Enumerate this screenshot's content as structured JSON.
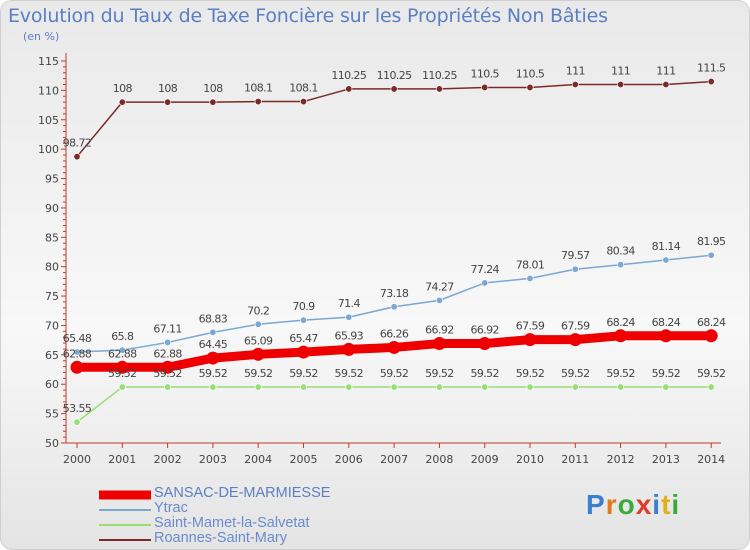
{
  "header": {
    "title": "Evolution du Taux de Taxe Foncière sur les Propriétés Non Bâties",
    "unit": "(en %)"
  },
  "logo": {
    "text": "Proxiti"
  },
  "colors": {
    "title": "#5a7fc4",
    "axis": "#c0392b",
    "text": "#444444"
  },
  "chart_data": {
    "type": "line",
    "title": "Evolution du Taux de Taxe Foncière sur les Propriétés Non Bâties",
    "ylabel": "(en %)",
    "xlabel": "",
    "ylim": [
      50,
      115
    ],
    "yticks": [
      "50",
      "55",
      "60",
      "65",
      "70",
      "75",
      "80",
      "85",
      "90",
      "95",
      "100",
      "105",
      "110",
      "115"
    ],
    "x": [
      "2000",
      "2001",
      "2002",
      "2003",
      "2004",
      "2005",
      "2006",
      "2007",
      "2008",
      "2009",
      "2010",
      "2011",
      "2012",
      "2013",
      "2014"
    ],
    "legend_position": "bottom-left",
    "series": [
      {
        "name": "SANSAC-DE-MARMIESSE",
        "color": "#ee0000",
        "values": [
          62.88,
          62.88,
          62.88,
          64.45,
          65.09,
          65.47,
          65.93,
          66.26,
          66.92,
          66.92,
          67.59,
          67.59,
          68.24,
          68.24,
          68.24
        ],
        "labels": [
          "62.88",
          "62.88",
          "62.88",
          "64.45",
          "65.09",
          "65.47",
          "65.93",
          "66.26",
          "66.92",
          "66.92",
          "67.59",
          "67.59",
          "68.24",
          "68.24",
          "68.24"
        ]
      },
      {
        "name": "Ytrac",
        "color": "#7ba7d4",
        "values": [
          65.48,
          65.8,
          67.11,
          68.83,
          70.2,
          70.9,
          71.4,
          73.18,
          74.27,
          77.24,
          78.01,
          79.57,
          80.34,
          81.14,
          81.95
        ],
        "labels": [
          "65.48",
          "65.8",
          "67.11",
          "68.83",
          "70.2",
          "70.9",
          "71.4",
          "73.18",
          "74.27",
          "77.24",
          "78.01",
          "79.57",
          "80.34",
          "81.14",
          "81.95"
        ]
      },
      {
        "name": "Saint-Mamet-la-Salvetat",
        "color": "#99dd77",
        "values": [
          53.55,
          59.52,
          59.52,
          59.52,
          59.52,
          59.52,
          59.52,
          59.52,
          59.52,
          59.52,
          59.52,
          59.52,
          59.52,
          59.52,
          59.52
        ],
        "labels": [
          "53.55",
          "59.52",
          "59.52",
          "59.52",
          "59.52",
          "59.52",
          "59.52",
          "59.52",
          "59.52",
          "59.52",
          "59.52",
          "59.52",
          "59.52",
          "59.52",
          "59.52"
        ]
      },
      {
        "name": "Roannes-Saint-Mary",
        "color": "#7a2a2a",
        "values": [
          98.72,
          108,
          108,
          108,
          108.1,
          108.1,
          110.25,
          110.25,
          110.25,
          110.5,
          110.5,
          111,
          111,
          111,
          111.5
        ],
        "labels": [
          "98.72",
          "108",
          "108",
          "108",
          "108.1",
          "108.1",
          "110.25",
          "110.25",
          "110.25",
          "110.5",
          "110.5",
          "111",
          "111",
          "111",
          "111.5"
        ]
      }
    ]
  }
}
